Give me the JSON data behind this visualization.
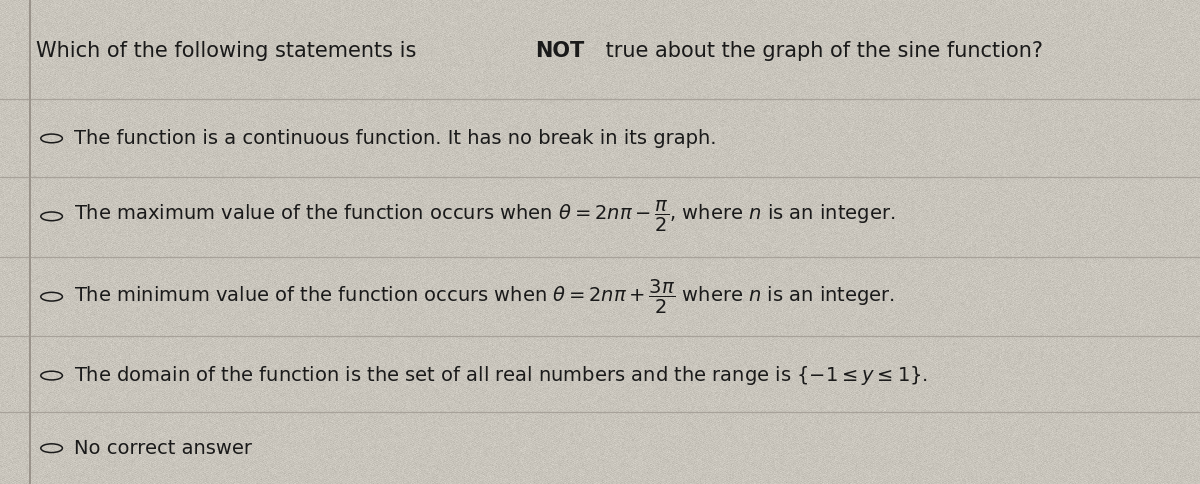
{
  "title_prefix": "Which of the following statements is ",
  "title_bold": "NOT",
  "title_suffix": " true about the graph of the sine function?",
  "options": [
    "The function is a continuous function. It has no break in its graph.",
    "max",
    "min",
    "domain",
    "No correct answer"
  ],
  "bg_color": "#c9c5bc",
  "text_color": "#1a1a1a",
  "title_fontsize": 15.0,
  "option_fontsize": 14.0,
  "sep_color": "#a09a92",
  "left_line_color": "#888078",
  "grid_color": "#b8b4ac"
}
